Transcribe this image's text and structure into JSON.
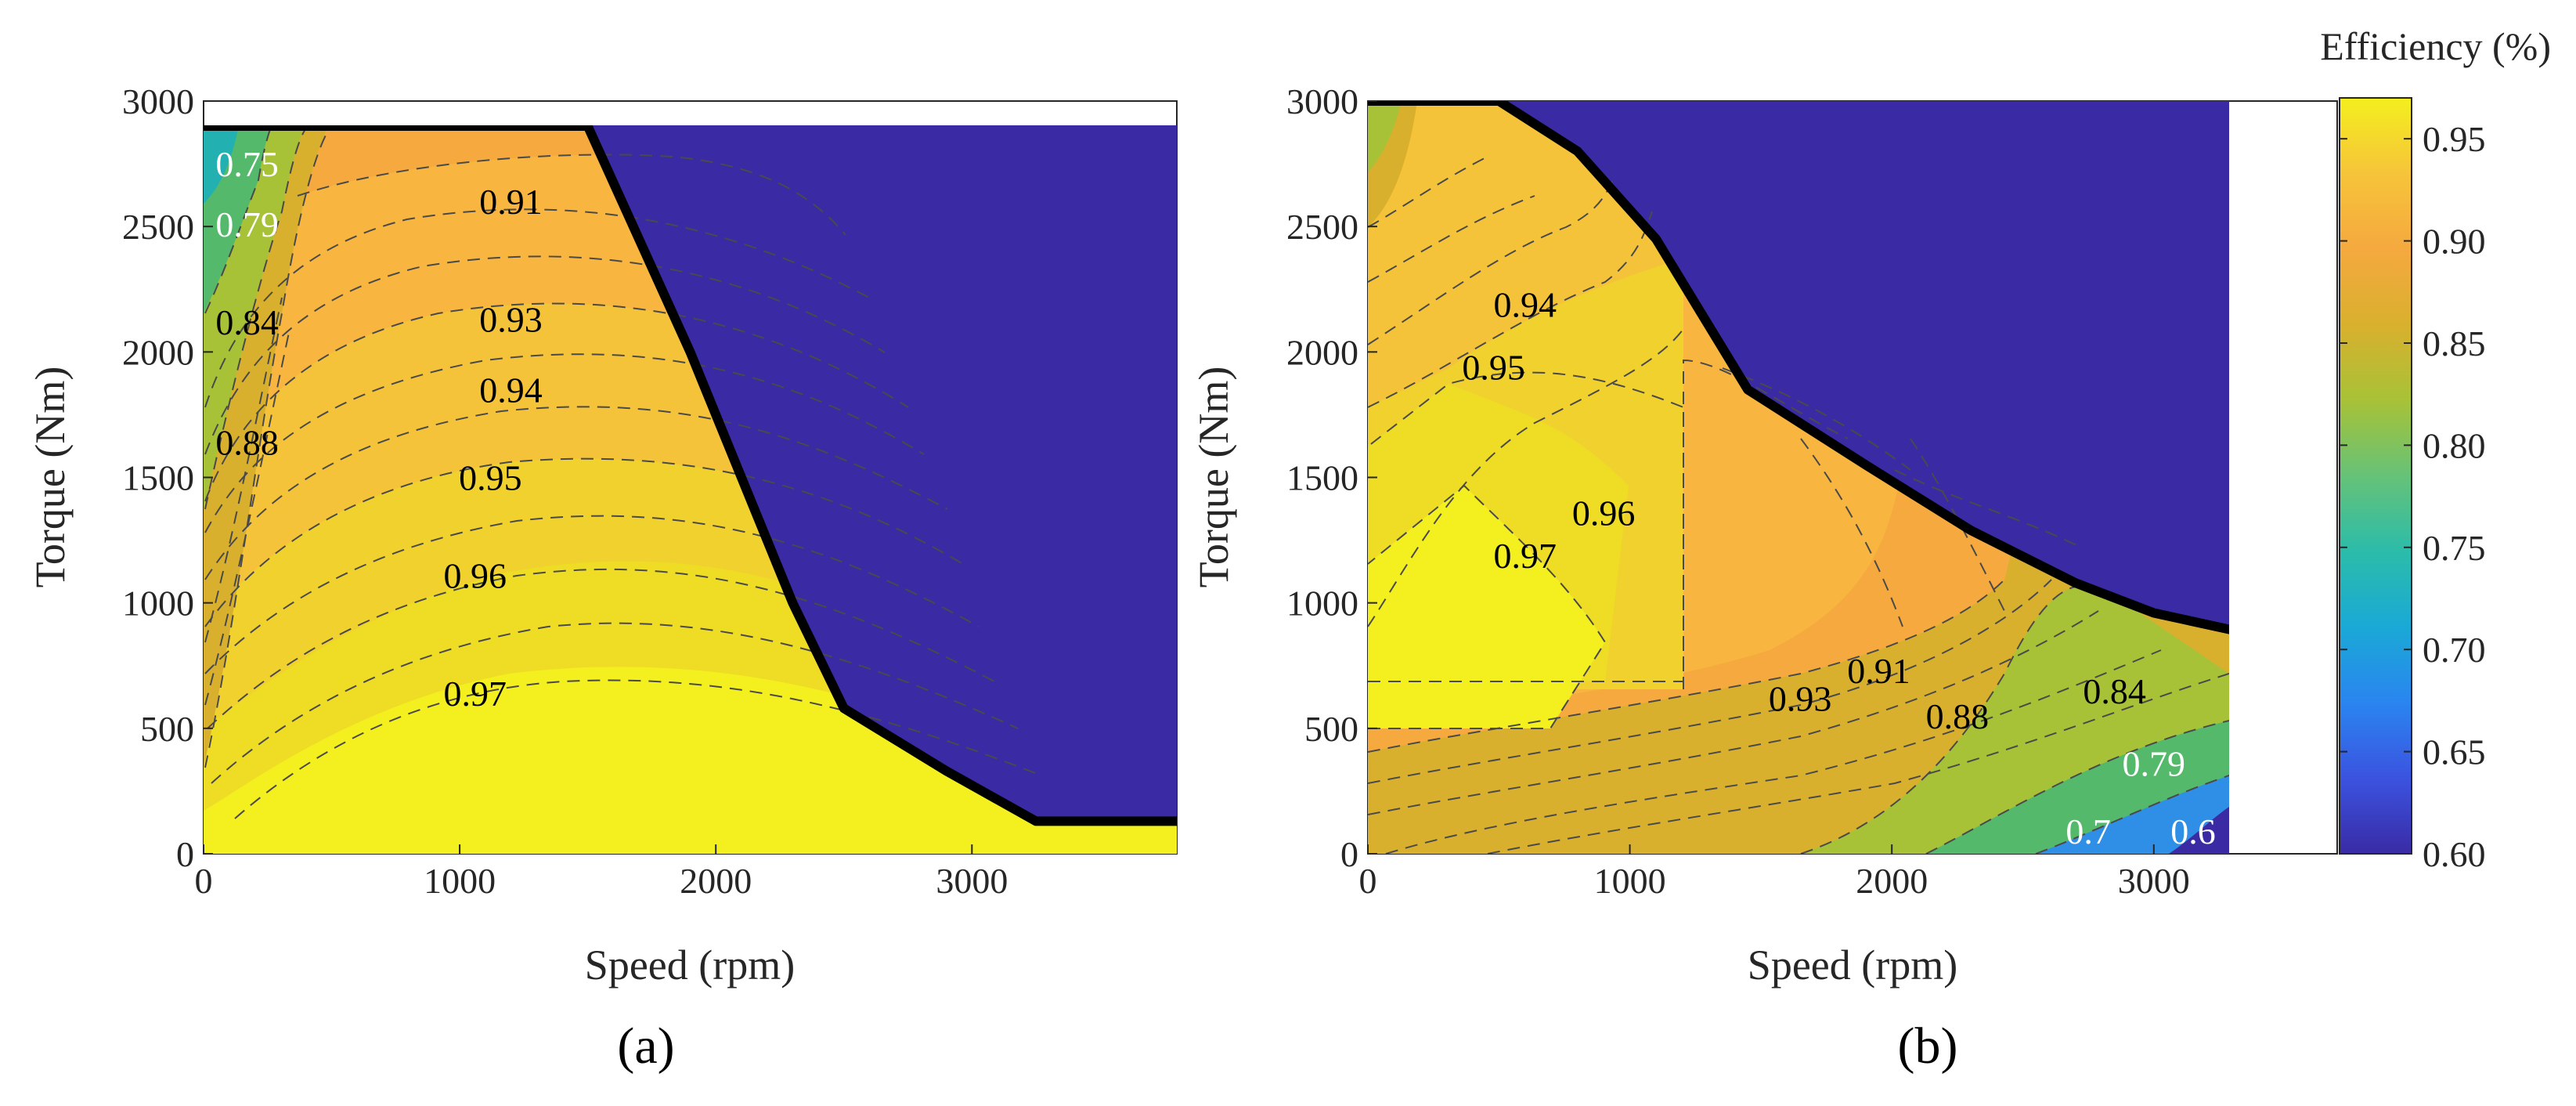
{
  "colors": {
    "c97": "#f4ef1f",
    "c96": "#eedc25",
    "c95": "#f0d12e",
    "c94": "#f5c33a",
    "c93": "#f8b53f",
    "c91": "#f5a93f",
    "c88": "#d9b02e",
    "c84": "#a8c237",
    "c79": "#54b96a",
    "c75": "#22b0b0",
    "c70": "#2f8fe6",
    "c60": "#3a2ba5",
    "edge": "#26c3e0"
  },
  "colorbar": {
    "title": "Efficiency (%)",
    "range": [
      0.6,
      0.97
    ],
    "ticks": [
      "0.95",
      "0.90",
      "0.85",
      "0.80",
      "0.75",
      "0.70",
      "0.65",
      "0.60"
    ],
    "tick_values": [
      0.95,
      0.9,
      0.85,
      0.8,
      0.75,
      0.7,
      0.65,
      0.6
    ],
    "stops": [
      "#3a2ba5",
      "#3b53e0",
      "#2a85f0",
      "#1aa9d6",
      "#2bbcaa",
      "#66c278",
      "#a8c237",
      "#d9b02e",
      "#f5a93f",
      "#f6c43a",
      "#f4ef1f"
    ]
  },
  "chart_data": [
    {
      "type": "heatmap",
      "panel_label": "(a)",
      "xlabel": "Speed (rpm)",
      "ylabel": "Torque (Nm)",
      "xlim": [
        0,
        3800
      ],
      "ylim": [
        0,
        3000
      ],
      "xticks": [
        "0",
        "1000",
        "2000",
        "3000"
      ],
      "xtick_values": [
        0,
        1000,
        2000,
        3000
      ],
      "yticks": [
        "0",
        "500",
        "1000",
        "1500",
        "2000",
        "2500",
        "3000"
      ],
      "ytick_values": [
        0,
        500,
        1000,
        1500,
        2000,
        2500,
        3000
      ],
      "torque_limit": [
        [
          0,
          2900
        ],
        [
          1500,
          2900
        ],
        [
          1700,
          2450
        ],
        [
          1900,
          2000
        ],
        [
          2100,
          1500
        ],
        [
          2300,
          1000
        ],
        [
          2500,
          580
        ],
        [
          2900,
          330
        ],
        [
          3250,
          130
        ],
        [
          3800,
          130
        ]
      ],
      "contour_labels": [
        {
          "text": "0.75",
          "x": 170,
          "y": 2750,
          "color": "#ffffff"
        },
        {
          "text": "0.79",
          "x": 170,
          "y": 2510,
          "color": "#ffffff"
        },
        {
          "text": "0.84",
          "x": 170,
          "y": 2120,
          "color": "#000000"
        },
        {
          "text": "0.88",
          "x": 170,
          "y": 1640,
          "color": "#000000"
        },
        {
          "text": "0.91",
          "x": 1200,
          "y": 2600,
          "color": "#000000"
        },
        {
          "text": "0.93",
          "x": 1200,
          "y": 2130,
          "color": "#000000"
        },
        {
          "text": "0.94",
          "x": 1200,
          "y": 1850,
          "color": "#000000"
        },
        {
          "text": "0.95",
          "x": 1120,
          "y": 1500,
          "color": "#000000"
        },
        {
          "text": "0.96",
          "x": 1060,
          "y": 1110,
          "color": "#000000"
        },
        {
          "text": "0.97",
          "x": 1060,
          "y": 640,
          "color": "#000000"
        }
      ]
    },
    {
      "type": "heatmap",
      "panel_label": "(b)",
      "xlabel": "Speed (rpm)",
      "ylabel": "Torque (Nm)",
      "xlim": [
        0,
        3700
      ],
      "ylim": [
        0,
        3000
      ],
      "data_xmax": 3350,
      "xticks": [
        "0",
        "1000",
        "2000",
        "3000"
      ],
      "xtick_values": [
        0,
        1000,
        2000,
        3000
      ],
      "yticks": [
        "0",
        "500",
        "1000",
        "1500",
        "2000",
        "2500",
        "3000"
      ],
      "ytick_values": [
        0,
        500,
        1000,
        1500,
        2000,
        2500,
        3000
      ],
      "torque_limit": [
        [
          0,
          3000
        ],
        [
          500,
          3000
        ],
        [
          800,
          2800
        ],
        [
          1100,
          2450
        ],
        [
          1450,
          1850
        ],
        [
          1900,
          1550
        ],
        [
          2300,
          1290
        ],
        [
          2700,
          1080
        ],
        [
          3000,
          960
        ],
        [
          3350,
          880
        ]
      ],
      "contour_labels": [
        {
          "text": "0.94",
          "x": 600,
          "y": 2190,
          "color": "#000000"
        },
        {
          "text": "0.95",
          "x": 480,
          "y": 1940,
          "color": "#000000"
        },
        {
          "text": "0.96",
          "x": 900,
          "y": 1360,
          "color": "#000000"
        },
        {
          "text": "0.97",
          "x": 600,
          "y": 1190,
          "color": "#000000"
        },
        {
          "text": "0.93",
          "x": 1650,
          "y": 620,
          "color": "#000000"
        },
        {
          "text": "0.91",
          "x": 1950,
          "y": 730,
          "color": "#000000"
        },
        {
          "text": "0.88",
          "x": 2250,
          "y": 550,
          "color": "#000000"
        },
        {
          "text": "0.84",
          "x": 2850,
          "y": 650,
          "color": "#000000"
        },
        {
          "text": "0.79",
          "x": 3000,
          "y": 360,
          "color": "#ffffff"
        },
        {
          "text": "0.7",
          "x": 2750,
          "y": 90,
          "color": "#ffffff"
        },
        {
          "text": "0.6",
          "x": 3150,
          "y": 90,
          "color": "#ffffff"
        }
      ]
    }
  ]
}
